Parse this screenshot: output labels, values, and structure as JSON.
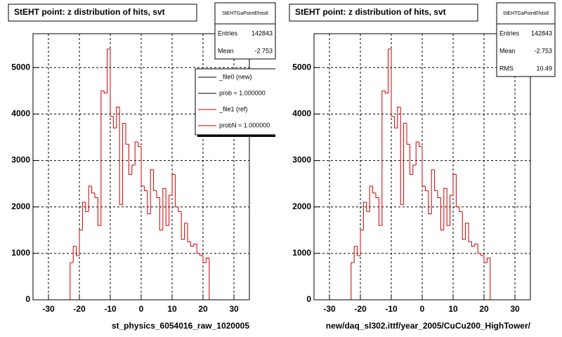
{
  "chart_data": [
    {
      "type": "histogram",
      "title": "StEHT point: z distribution of hits, svt",
      "x_label": "st_physics_6054016_raw_1020005",
      "bins": [
        -35,
        -34,
        -33,
        -32,
        -31,
        -30,
        -29,
        -28,
        -27,
        -26,
        -25,
        -24,
        -23,
        -22,
        -21,
        -20,
        -19,
        -18,
        -17,
        -16,
        -15,
        -14,
        -13,
        -12,
        -11,
        -10,
        -9,
        -8,
        -7,
        -6,
        -5,
        -4,
        -3,
        -2,
        -1,
        0,
        1,
        2,
        3,
        4,
        5,
        6,
        7,
        8,
        9,
        10,
        11,
        12,
        13,
        14,
        15,
        16,
        17,
        18,
        19,
        20,
        21,
        22,
        23,
        24,
        25,
        26,
        27,
        28,
        29,
        30,
        31,
        32,
        33,
        34,
        35
      ],
      "counts": [
        0,
        0,
        0,
        0,
        0,
        0,
        0,
        0,
        0,
        0,
        0,
        0,
        800,
        1150,
        950,
        1500,
        2100,
        1900,
        2450,
        2300,
        2200,
        1600,
        4500,
        4450,
        5400,
        3950,
        3700,
        4150,
        2050,
        3800,
        3350,
        2700,
        2900,
        3400,
        3300,
        2450,
        2350,
        1850,
        2800,
        2350,
        2200,
        1500,
        2400,
        1600,
        2250,
        2700,
        2000,
        1900,
        1300,
        1650,
        1250,
        1150,
        1200,
        1000,
        950,
        800,
        900,
        0,
        0,
        0,
        0,
        0,
        0,
        0,
        0,
        0,
        0,
        0,
        0,
        0
      ],
      "color": "#cc0000",
      "xlim": [
        -35,
        35
      ],
      "ylim": [
        0,
        5730
      ],
      "xticks": [
        -30,
        -20,
        -10,
        0,
        10,
        20,
        30
      ],
      "yticks": [
        0,
        1000,
        2000,
        3000,
        4000,
        5000
      ],
      "grid": true,
      "stats_title": "StEHTGaPointEhits8",
      "stats": [
        {
          "label": "Entries",
          "value": 142843
        },
        {
          "label": "Mean",
          "value": -2.753
        }
      ],
      "legend": [
        {
          "label": "_file0 (new)",
          "color": "#000000"
        },
        {
          "label": "prob = 1.000000",
          "color": "#000000"
        },
        {
          "label": "_file1 (ref)",
          "color": "#cc0000"
        },
        {
          "label": "probN = 1.000000",
          "color": "#cc0000"
        }
      ]
    },
    {
      "type": "histogram",
      "title": "StEHT point: z distribution of hits, svt",
      "x_label": "new/daq_sl302.ittf/year_2005/CuCu200_HighTower/",
      "bins": [
        -35,
        -34,
        -33,
        -32,
        -31,
        -30,
        -29,
        -28,
        -27,
        -26,
        -25,
        -24,
        -23,
        -22,
        -21,
        -20,
        -19,
        -18,
        -17,
        -16,
        -15,
        -14,
        -13,
        -12,
        -11,
        -10,
        -9,
        -8,
        -7,
        -6,
        -5,
        -4,
        -3,
        -2,
        -1,
        0,
        1,
        2,
        3,
        4,
        5,
        6,
        7,
        8,
        9,
        10,
        11,
        12,
        13,
        14,
        15,
        16,
        17,
        18,
        19,
        20,
        21,
        22,
        23,
        24,
        25,
        26,
        27,
        28,
        29,
        30,
        31,
        32,
        33,
        34,
        35
      ],
      "counts": [
        0,
        0,
        0,
        0,
        0,
        0,
        0,
        0,
        0,
        0,
        0,
        0,
        800,
        1150,
        950,
        1500,
        2100,
        1900,
        2450,
        2300,
        2200,
        1600,
        4500,
        4450,
        5400,
        3950,
        3700,
        4150,
        2050,
        3800,
        3350,
        2700,
        2900,
        3400,
        3300,
        2450,
        2350,
        1850,
        2800,
        2350,
        2200,
        1500,
        2400,
        1600,
        2250,
        2700,
        2000,
        1900,
        1300,
        1650,
        1250,
        1150,
        1200,
        1000,
        950,
        800,
        900,
        0,
        0,
        0,
        0,
        0,
        0,
        0,
        0,
        0,
        0,
        0,
        0,
        0
      ],
      "color": "#cc0000",
      "xlim": [
        -35,
        35
      ],
      "ylim": [
        0,
        5730
      ],
      "xticks": [
        -30,
        -20,
        -10,
        0,
        10,
        20,
        30
      ],
      "yticks": [
        0,
        1000,
        2000,
        3000,
        4000,
        5000
      ],
      "grid": true,
      "stats_title": "StEHTGaPointEhits8",
      "stats": [
        {
          "label": "Entries",
          "value": 142843
        },
        {
          "label": "Mean",
          "value": -2.753
        },
        {
          "label": "RMS",
          "value": 10.49
        }
      ]
    }
  ]
}
